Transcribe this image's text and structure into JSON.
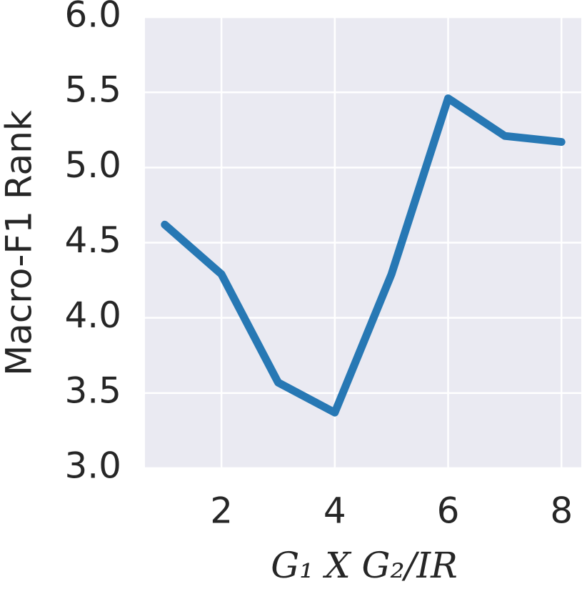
{
  "chart_data": {
    "type": "line",
    "x": [
      1,
      2,
      3,
      4,
      5,
      6,
      7,
      8
    ],
    "series": [
      {
        "name": "Macro-F1 Rank",
        "color": "#2778b4",
        "values": [
          4.62,
          4.29,
          3.57,
          3.37,
          4.29,
          5.46,
          5.21,
          5.17
        ]
      }
    ],
    "xlabel": "G₁ X G₂/IR",
    "ylabel": "Macro-F1 Rank",
    "xlim": [
      0.65,
      8.35
    ],
    "xticks": [
      2,
      4,
      6,
      8
    ],
    "ylim": [
      3.0,
      6.0
    ],
    "yticks": [
      {
        "value": 3.0,
        "label": "3.0"
      },
      {
        "value": 3.5,
        "label": "3.5"
      },
      {
        "value": 4.0,
        "label": "4.0"
      },
      {
        "value": 4.5,
        "label": "4.5"
      },
      {
        "value": 5.0,
        "label": "5.0"
      },
      {
        "value": 5.5,
        "label": "5.5"
      },
      {
        "value": 6.0,
        "label": "6.0"
      }
    ],
    "grid": true
  }
}
